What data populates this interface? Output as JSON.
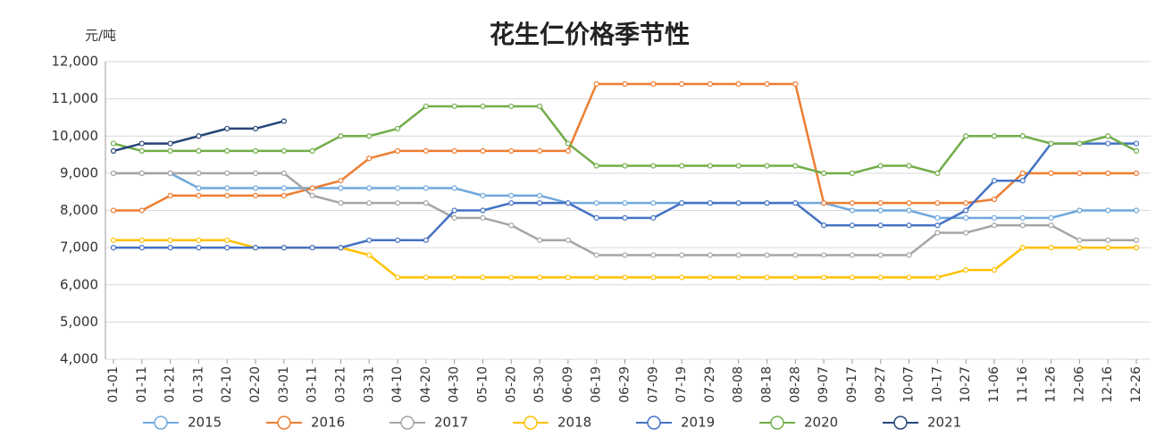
{
  "chart_data": {
    "type": "line",
    "title": "花生仁价格季节性",
    "y_label": "元/吨",
    "categories": [
      "01-01",
      "01-11",
      "01-21",
      "01-31",
      "02-10",
      "02-20",
      "03-01",
      "03-11",
      "03-21",
      "03-31",
      "04-10",
      "04-20",
      "04-30",
      "05-10",
      "05-20",
      "05-30",
      "06-09",
      "06-19",
      "06-29",
      "07-09",
      "07-19",
      "07-29",
      "08-08",
      "08-18",
      "08-28",
      "09-07",
      "09-17",
      "09-27",
      "10-07",
      "10-17",
      "10-27",
      "11-06",
      "11-16",
      "11-26",
      "12-06",
      "12-16",
      "12-26"
    ],
    "ylim": [
      4000,
      12000
    ],
    "yticks": [
      {
        "value": 4000,
        "label": "4,000"
      },
      {
        "value": 5000,
        "label": "5,000"
      },
      {
        "value": 6000,
        "label": "6,000"
      },
      {
        "value": 7000,
        "label": "7,000"
      },
      {
        "value": 8000,
        "label": "8,000"
      },
      {
        "value": 9000,
        "label": "9,000"
      },
      {
        "value": 10000,
        "label": "10,000"
      },
      {
        "value": 11000,
        "label": "11,000"
      },
      {
        "value": 12000,
        "label": "12,000"
      }
    ],
    "grid": true,
    "series": [
      {
        "name": "2015",
        "color": "#6fa8dc",
        "values": [
          9000,
          9000,
          9000,
          8600,
          8600,
          8600,
          8600,
          8600,
          8600,
          8600,
          8600,
          8600,
          8600,
          8400,
          8400,
          8400,
          8200,
          8200,
          8200,
          8200,
          8200,
          8200,
          8200,
          8200,
          8200,
          8200,
          8000,
          8000,
          8000,
          7800,
          7800,
          7800,
          7800,
          7800,
          8000,
          8000,
          8000
        ]
      },
      {
        "name": "2016",
        "color": "#ed7d31",
        "values": [
          8000,
          8000,
          8400,
          8400,
          8400,
          8400,
          8400,
          8600,
          8800,
          9400,
          9600,
          9600,
          9600,
          9600,
          9600,
          9600,
          9600,
          11400,
          11400,
          11400,
          11400,
          11400,
          11400,
          11400,
          11400,
          8200,
          8200,
          8200,
          8200,
          8200,
          8200,
          8300,
          9000,
          9000,
          9000,
          9000,
          9000
        ]
      },
      {
        "name": "2017",
        "color": "#a5a5a5",
        "values": [
          9000,
          9000,
          9000,
          9000,
          9000,
          9000,
          9000,
          8400,
          8200,
          8200,
          8200,
          8200,
          7800,
          7800,
          7600,
          7200,
          7200,
          6800,
          6800,
          6800,
          6800,
          6800,
          6800,
          6800,
          6800,
          6800,
          6800,
          6800,
          6800,
          7400,
          7400,
          7600,
          7600,
          7600,
          7200,
          7200,
          7200
        ]
      },
      {
        "name": "2018",
        "color": "#ffc000",
        "values": [
          7200,
          7200,
          7200,
          7200,
          7200,
          7000,
          7000,
          7000,
          7000,
          6800,
          6200,
          6200,
          6200,
          6200,
          6200,
          6200,
          6200,
          6200,
          6200,
          6200,
          6200,
          6200,
          6200,
          6200,
          6200,
          6200,
          6200,
          6200,
          6200,
          6200,
          6400,
          6400,
          7000,
          7000,
          7000,
          7000,
          7000
        ]
      },
      {
        "name": "2019",
        "color": "#4472c4",
        "values": [
          7000,
          7000,
          7000,
          7000,
          7000,
          7000,
          7000,
          7000,
          7000,
          7200,
          7200,
          7200,
          8000,
          8000,
          8200,
          8200,
          8200,
          7800,
          7800,
          7800,
          8200,
          8200,
          8200,
          8200,
          8200,
          7600,
          7600,
          7600,
          7600,
          7600,
          8000,
          8800,
          8800,
          9800,
          9800,
          9800,
          9800
        ]
      },
      {
        "name": "2020",
        "color": "#70ad47",
        "values": [
          9800,
          9600,
          9600,
          9600,
          9600,
          9600,
          9600,
          9600,
          10000,
          10000,
          10200,
          10800,
          10800,
          10800,
          10800,
          10800,
          9800,
          9200,
          9200,
          9200,
          9200,
          9200,
          9200,
          9200,
          9200,
          9000,
          9000,
          9200,
          9200,
          9000,
          10000,
          10000,
          10000,
          9800,
          9800,
          10000,
          9600
        ]
      },
      {
        "name": "2021",
        "color": "#264478",
        "values": [
          9600,
          9800,
          9800,
          10000,
          10200,
          10200,
          10400,
          null,
          null,
          null,
          null,
          null,
          null,
          null,
          null,
          null,
          null,
          null,
          null,
          null,
          null,
          null,
          null,
          null,
          null,
          null,
          null,
          null,
          null,
          null,
          null,
          null,
          null,
          null,
          null,
          null,
          null
        ]
      }
    ]
  }
}
